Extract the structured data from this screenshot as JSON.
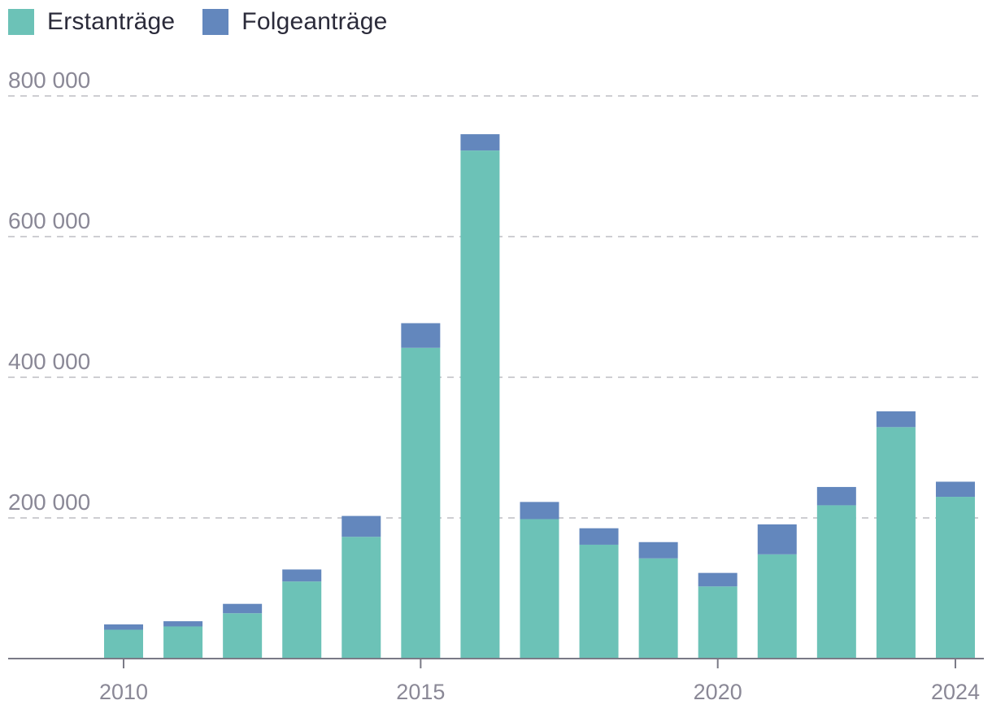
{
  "legend": {
    "first_label": "Erstanträge",
    "follow_label": "Folgeanträge"
  },
  "colors": {
    "first": "#6cc2b7",
    "follow": "#6387bd",
    "grid": "#bdbdc4",
    "axis": "#7a7a86",
    "tick_text": "#8a8896"
  },
  "chart_data": {
    "type": "bar",
    "stacked": true,
    "categories": [
      2010,
      2011,
      2012,
      2013,
      2014,
      2015,
      2016,
      2017,
      2018,
      2019,
      2020,
      2021,
      2022,
      2023,
      2024
    ],
    "series": [
      {
        "name": "Erstanträge",
        "values": [
          41000,
          45700,
          64500,
          109600,
          173100,
          441900,
          722400,
          198300,
          161900,
          142500,
          102600,
          148200,
          218000,
          329100,
          230000
        ]
      },
      {
        "name": "Folgeanträge",
        "values": [
          7600,
          7400,
          13300,
          17100,
          29700,
          35000,
          23200,
          24400,
          23400,
          23100,
          19200,
          42600,
          26000,
          22500,
          21500
        ]
      }
    ],
    "title": "",
    "xlabel": "",
    "ylabel": "",
    "ylim": [
      0,
      800000
    ],
    "y_ticks": [
      200000,
      400000,
      600000,
      800000
    ],
    "y_tick_labels": [
      "200 000",
      "400 000",
      "600 000",
      "800 000"
    ],
    "x_tick_labels": [
      "2010",
      "2015",
      "2020",
      "2024"
    ],
    "grid": true,
    "legend_position": "top-left"
  }
}
